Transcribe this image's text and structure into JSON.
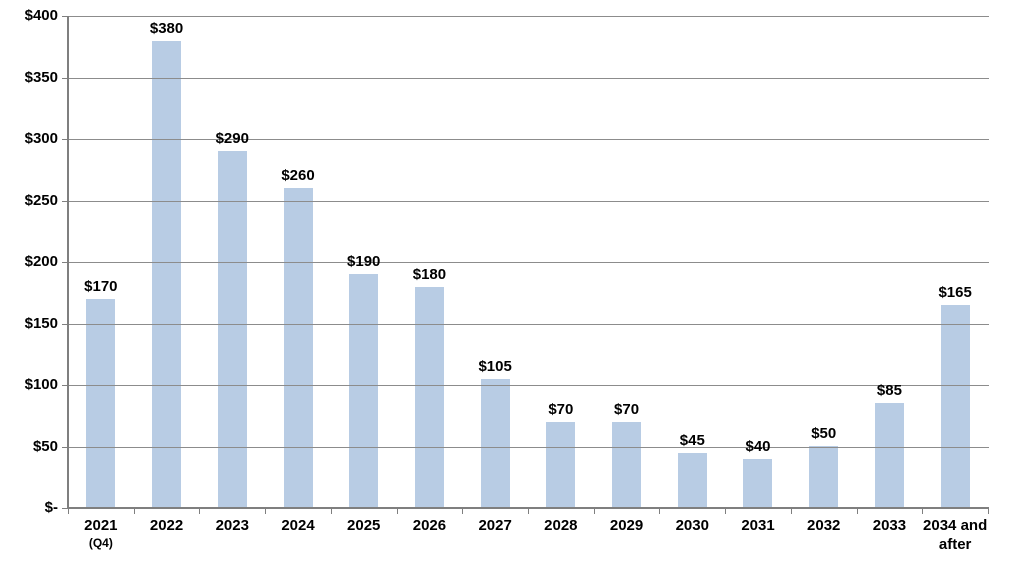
{
  "chart_data": {
    "type": "bar",
    "title": "",
    "xlabel": "",
    "ylabel": "",
    "categories": [
      "2021 (Q4)",
      "2022",
      "2023",
      "2024",
      "2025",
      "2026",
      "2027",
      "2028",
      "2029",
      "2030",
      "2031",
      "2032",
      "2033",
      "2034 and after"
    ],
    "values": [
      170,
      380,
      290,
      260,
      190,
      180,
      105,
      70,
      70,
      45,
      40,
      50,
      85,
      165
    ],
    "value_labels": [
      "$170",
      "$380",
      "$290",
      "$260",
      "$190",
      "$180",
      "$105",
      "$70",
      "$70",
      "$45",
      "$40",
      "$50",
      "$85",
      "$165"
    ],
    "category_display": [
      {
        "lines": [
          "2021",
          "(Q4)"
        ],
        "small_line": 1
      },
      {
        "lines": [
          "2022"
        ]
      },
      {
        "lines": [
          "2023"
        ]
      },
      {
        "lines": [
          "2024"
        ]
      },
      {
        "lines": [
          "2025"
        ]
      },
      {
        "lines": [
          "2026"
        ]
      },
      {
        "lines": [
          "2027"
        ]
      },
      {
        "lines": [
          "2028"
        ]
      },
      {
        "lines": [
          "2029"
        ]
      },
      {
        "lines": [
          "2030"
        ]
      },
      {
        "lines": [
          "2031"
        ]
      },
      {
        "lines": [
          "2032"
        ]
      },
      {
        "lines": [
          "2033"
        ]
      },
      {
        "lines": [
          "2034 and",
          "after"
        ]
      }
    ],
    "ylim": [
      0,
      400
    ],
    "ytick_interval": 50,
    "ytick_labels": [
      "$-",
      "$50",
      "$100",
      "$150",
      "$200",
      "$250",
      "$300",
      "$350",
      "$400"
    ],
    "grid": true,
    "gridlines_over_bars": true,
    "legend": false,
    "colors": {
      "bar_fill": "#b8cce4",
      "gridline": "#8c8c8c",
      "axis": "#7f7f7f",
      "text": "#000000",
      "background": "#ffffff"
    }
  }
}
